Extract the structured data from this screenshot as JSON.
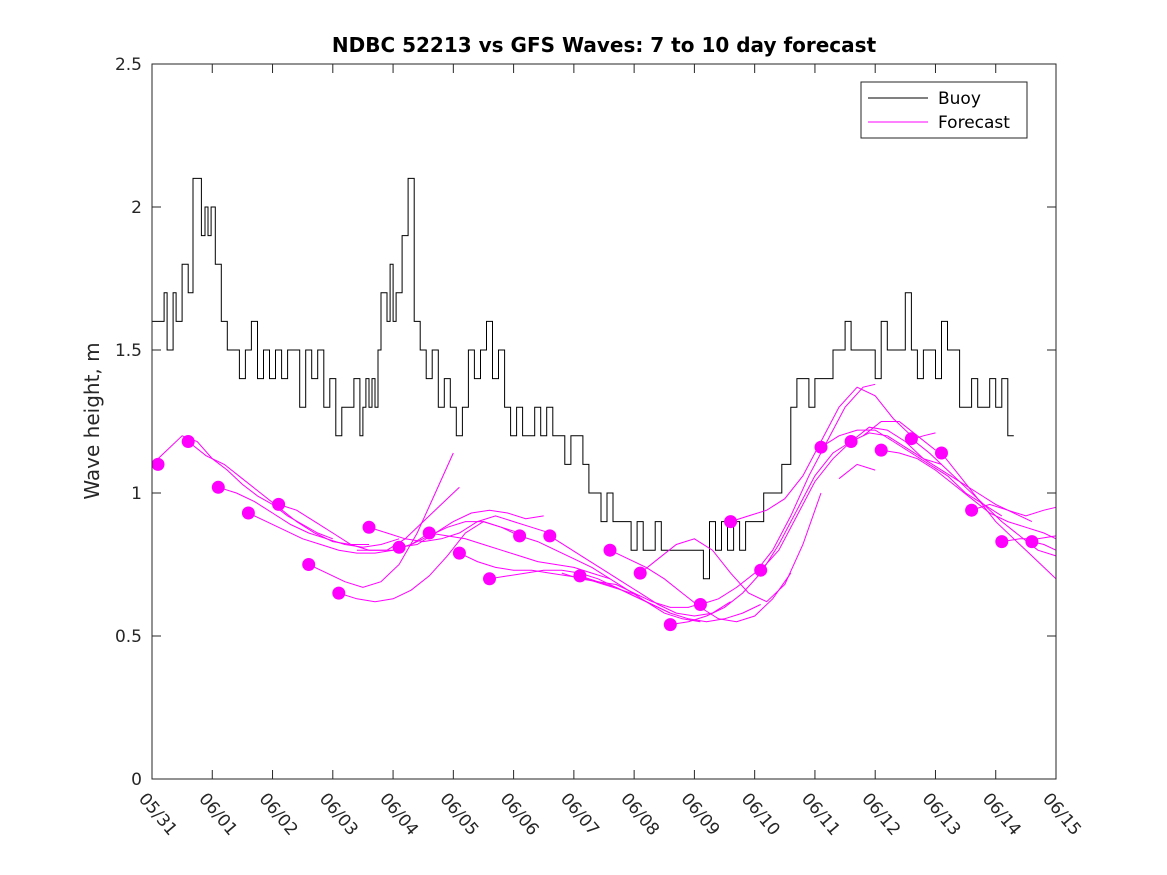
{
  "chart_data": {
    "type": "line",
    "title": "NDBC 52213 vs GFS Waves: 7 to 10 day forecast",
    "xlabel": "",
    "ylabel": "Wave height, m",
    "ylim": [
      0,
      2.5
    ],
    "yticks": [
      0,
      0.5,
      1,
      1.5,
      2,
      2.5
    ],
    "ytick_labels": [
      "0",
      "0.5",
      "1",
      "1.5",
      "2",
      "2.5"
    ],
    "xlim_days": [
      0,
      15
    ],
    "xtick_labels": [
      "05/31",
      "06/01",
      "06/02",
      "06/03",
      "06/04",
      "06/05",
      "06/06",
      "06/07",
      "06/08",
      "06/09",
      "06/10",
      "06/11",
      "06/12",
      "06/13",
      "06/14",
      "06/15"
    ],
    "legend": {
      "placement": "top-right",
      "entries": [
        "Buoy",
        "Forecast"
      ]
    },
    "colors": {
      "buoy": "#000000",
      "forecast": "#ff00ff"
    },
    "buoy": {
      "name": "Buoy",
      "x": [
        0.0,
        0.1,
        0.2,
        0.25,
        0.35,
        0.4,
        0.5,
        0.6,
        0.68,
        0.75,
        0.82,
        0.88,
        0.93,
        0.98,
        1.05,
        1.15,
        1.25,
        1.35,
        1.45,
        1.55,
        1.65,
        1.75,
        1.85,
        1.95,
        2.05,
        2.15,
        2.25,
        2.35,
        2.45,
        2.55,
        2.65,
        2.75,
        2.85,
        2.95,
        3.05,
        3.15,
        3.25,
        3.35,
        3.45,
        3.5,
        3.55,
        3.6,
        3.65,
        3.7,
        3.75,
        3.8,
        3.85,
        3.9,
        3.95,
        4.0,
        4.05,
        4.15,
        4.25,
        4.35,
        4.45,
        4.55,
        4.65,
        4.75,
        4.85,
        4.95,
        5.05,
        5.15,
        5.25,
        5.35,
        5.45,
        5.55,
        5.65,
        5.75,
        5.85,
        5.95,
        6.05,
        6.15,
        6.25,
        6.35,
        6.45,
        6.55,
        6.65,
        6.75,
        6.85,
        6.95,
        7.05,
        7.15,
        7.25,
        7.35,
        7.45,
        7.55,
        7.65,
        7.75,
        7.85,
        7.95,
        8.05,
        8.15,
        8.25,
        8.35,
        8.45,
        8.55,
        8.65,
        8.75,
        8.85,
        8.95,
        9.05,
        9.15,
        9.25,
        9.35,
        9.45,
        9.55,
        9.65,
        9.75,
        9.85,
        9.95,
        10.05,
        10.15,
        10.25,
        10.35,
        10.45,
        10.55,
        10.6,
        10.7,
        10.8,
        10.9,
        11.0,
        11.1,
        11.2,
        11.3,
        11.4,
        11.5,
        11.6,
        11.7,
        11.8,
        11.9,
        12.0,
        12.1,
        12.2,
        12.3,
        12.4,
        12.5,
        12.6,
        12.7,
        12.8,
        12.9,
        13.0,
        13.1,
        13.2,
        13.3,
        13.4,
        13.5,
        13.6,
        13.7,
        13.8,
        13.9,
        14.0,
        14.1,
        14.2,
        14.3
      ],
      "y": [
        1.6,
        1.6,
        1.7,
        1.5,
        1.7,
        1.6,
        1.8,
        1.7,
        2.1,
        2.1,
        1.9,
        2.0,
        1.9,
        2.0,
        1.8,
        1.6,
        1.5,
        1.5,
        1.4,
        1.5,
        1.6,
        1.4,
        1.5,
        1.4,
        1.5,
        1.4,
        1.5,
        1.5,
        1.3,
        1.5,
        1.4,
        1.5,
        1.3,
        1.4,
        1.2,
        1.3,
        1.3,
        1.4,
        1.2,
        1.3,
        1.4,
        1.3,
        1.4,
        1.3,
        1.5,
        1.7,
        1.7,
        1.6,
        1.8,
        1.6,
        1.7,
        1.9,
        2.1,
        1.6,
        1.5,
        1.4,
        1.5,
        1.3,
        1.4,
        1.3,
        1.2,
        1.3,
        1.5,
        1.4,
        1.5,
        1.6,
        1.4,
        1.5,
        1.3,
        1.2,
        1.3,
        1.2,
        1.2,
        1.3,
        1.2,
        1.3,
        1.2,
        1.2,
        1.1,
        1.2,
        1.2,
        1.1,
        1.0,
        1.0,
        0.9,
        1.0,
        0.9,
        0.9,
        0.9,
        0.8,
        0.9,
        0.8,
        0.8,
        0.9,
        0.8,
        0.8,
        0.8,
        0.8,
        0.8,
        0.8,
        0.8,
        0.7,
        0.9,
        0.8,
        0.9,
        0.8,
        0.9,
        0.8,
        0.9,
        0.9,
        0.9,
        1.0,
        1.0,
        1.0,
        1.1,
        1.1,
        1.3,
        1.4,
        1.4,
        1.3,
        1.4,
        1.4,
        1.4,
        1.5,
        1.5,
        1.6,
        1.5,
        1.5,
        1.5,
        1.5,
        1.4,
        1.6,
        1.5,
        1.5,
        1.5,
        1.7,
        1.5,
        1.4,
        1.5,
        1.5,
        1.4,
        1.6,
        1.5,
        1.5,
        1.3,
        1.3,
        1.4,
        1.3,
        1.3,
        1.4,
        1.3,
        1.4,
        1.2,
        1.2
      ]
    },
    "forecast_runs": [
      {
        "x": [
          0.0,
          0.25,
          0.5,
          0.75,
          1.0,
          1.25,
          1.5,
          1.75,
          2.0,
          2.25,
          2.5,
          2.75,
          3.0
        ],
        "y": [
          1.1,
          1.15,
          1.2,
          1.18,
          1.12,
          1.08,
          1.03,
          0.99,
          0.96,
          0.92,
          0.89,
          0.86,
          0.84
        ]
      },
      {
        "x": [
          0.6,
          0.9,
          1.2,
          1.5,
          1.8,
          2.1,
          2.4,
          2.7,
          3.0,
          3.3,
          3.6
        ],
        "y": [
          1.18,
          1.13,
          1.1,
          1.05,
          1.0,
          0.95,
          0.9,
          0.86,
          0.83,
          0.82,
          0.82
        ]
      },
      {
        "x": [
          1.1,
          1.4,
          1.7,
          2.0,
          2.3,
          2.6,
          2.9,
          3.2,
          3.5,
          3.8,
          4.1
        ],
        "y": [
          1.02,
          1.0,
          0.97,
          0.93,
          0.89,
          0.86,
          0.84,
          0.82,
          0.81,
          0.82,
          0.84
        ]
      },
      {
        "x": [
          1.6,
          1.9,
          2.2,
          2.5,
          2.8,
          3.1,
          3.4,
          3.7,
          4.0,
          4.3,
          4.6
        ],
        "y": [
          0.93,
          0.9,
          0.87,
          0.84,
          0.82,
          0.8,
          0.79,
          0.79,
          0.8,
          0.82,
          0.86
        ]
      },
      {
        "x": [
          2.1,
          2.4,
          2.7,
          3.0,
          3.3,
          3.6,
          3.9,
          4.2,
          4.5,
          4.8,
          5.1
        ],
        "y": [
          0.96,
          0.94,
          0.9,
          0.86,
          0.82,
          0.8,
          0.8,
          0.84,
          0.9,
          0.96,
          1.02
        ]
      },
      {
        "x": [
          2.6,
          2.9,
          3.2,
          3.5,
          3.8,
          4.1,
          4.4,
          4.7,
          5.0
        ],
        "y": [
          0.75,
          0.72,
          0.69,
          0.67,
          0.69,
          0.75,
          0.86,
          1.0,
          1.14
        ]
      },
      {
        "x": [
          3.1,
          3.4,
          3.7,
          4.0,
          4.3,
          4.6,
          4.9,
          5.2,
          5.5,
          5.8,
          6.1
        ],
        "y": [
          0.65,
          0.63,
          0.62,
          0.63,
          0.66,
          0.71,
          0.78,
          0.86,
          0.9,
          0.88,
          0.85
        ]
      },
      {
        "x": [
          3.6,
          3.9,
          4.2,
          4.5,
          4.8,
          5.1,
          5.4,
          5.7,
          6.0,
          6.3,
          6.6
        ],
        "y": [
          0.88,
          0.86,
          0.84,
          0.83,
          0.84,
          0.86,
          0.9,
          0.92,
          0.9,
          0.88,
          0.86
        ]
      },
      {
        "x": [
          4.1,
          4.4,
          4.7,
          5.0,
          5.3,
          5.6,
          5.9,
          6.2,
          6.5
        ],
        "y": [
          0.81,
          0.82,
          0.86,
          0.9,
          0.93,
          0.94,
          0.93,
          0.91,
          0.92
        ]
      },
      {
        "x": [
          4.6,
          4.9,
          5.2,
          5.5,
          5.8,
          6.1,
          6.4,
          6.7,
          7.0,
          7.3,
          7.6
        ],
        "y": [
          0.86,
          0.85,
          0.84,
          0.82,
          0.8,
          0.78,
          0.76,
          0.75,
          0.74,
          0.72,
          0.7
        ]
      },
      {
        "x": [
          5.1,
          5.4,
          5.7,
          6.0,
          6.3,
          6.6,
          6.9,
          7.2,
          7.5,
          7.8,
          8.1
        ],
        "y": [
          0.79,
          0.76,
          0.74,
          0.73,
          0.73,
          0.72,
          0.71,
          0.7,
          0.68,
          0.66,
          0.64
        ]
      },
      {
        "x": [
          5.6,
          5.9,
          6.2,
          6.5,
          6.8,
          7.1,
          7.4,
          7.7,
          8.0,
          8.3,
          8.6
        ],
        "y": [
          0.7,
          0.71,
          0.72,
          0.73,
          0.73,
          0.72,
          0.7,
          0.67,
          0.64,
          0.61,
          0.58
        ]
      },
      {
        "x": [
          6.1,
          6.4,
          6.7,
          7.0,
          7.3,
          7.6,
          7.9,
          8.2,
          8.5,
          8.8,
          9.1
        ],
        "y": [
          0.85,
          0.83,
          0.8,
          0.77,
          0.74,
          0.7,
          0.66,
          0.62,
          0.58,
          0.56,
          0.55
        ]
      },
      {
        "x": [
          6.6,
          6.9,
          7.2,
          7.5,
          7.8,
          8.1,
          8.4,
          8.7,
          9.0,
          9.3,
          9.6
        ],
        "y": [
          0.85,
          0.81,
          0.77,
          0.73,
          0.69,
          0.65,
          0.61,
          0.58,
          0.57,
          0.58,
          0.62
        ]
      },
      {
        "x": [
          7.1,
          7.4,
          7.7,
          8.0,
          8.3,
          8.6,
          8.9,
          9.2,
          9.5,
          9.8,
          10.1
        ],
        "y": [
          0.71,
          0.69,
          0.67,
          0.64,
          0.61,
          0.58,
          0.56,
          0.55,
          0.56,
          0.58,
          0.61
        ]
      },
      {
        "x": [
          7.6,
          7.9,
          8.2,
          8.5,
          8.8,
          9.1,
          9.4,
          9.7,
          10.0,
          10.3,
          10.6
        ],
        "y": [
          0.8,
          0.77,
          0.74,
          0.7,
          0.65,
          0.6,
          0.56,
          0.55,
          0.57,
          0.63,
          0.72
        ]
      },
      {
        "x": [
          8.1,
          8.4,
          8.7,
          9.0,
          9.3,
          9.6,
          9.9,
          10.2,
          10.5,
          10.8,
          11.1
        ],
        "y": [
          0.72,
          0.77,
          0.82,
          0.84,
          0.8,
          0.72,
          0.65,
          0.62,
          0.68,
          0.82,
          1.0
        ]
      },
      {
        "x": [
          8.6,
          8.9,
          9.2,
          9.5,
          9.8,
          10.1,
          10.4,
          10.7,
          11.0,
          11.3,
          11.6
        ],
        "y": [
          0.54,
          0.55,
          0.57,
          0.6,
          0.65,
          0.72,
          0.82,
          0.94,
          1.06,
          1.14,
          1.18
        ]
      },
      {
        "x": [
          9.1,
          9.4,
          9.7,
          10.0,
          10.3,
          10.6,
          10.9,
          11.2,
          11.5,
          11.8,
          12.0
        ],
        "y": [
          0.61,
          0.63,
          0.67,
          0.72,
          0.8,
          0.92,
          1.06,
          1.18,
          1.3,
          1.37,
          1.38
        ]
      },
      {
        "x": [
          9.6,
          9.9,
          10.2,
          10.5,
          10.8,
          11.1,
          11.4,
          11.7,
          12.0,
          12.3,
          12.6
        ],
        "y": [
          0.9,
          0.92,
          0.94,
          0.98,
          1.06,
          1.18,
          1.3,
          1.37,
          1.34,
          1.26,
          1.2
        ]
      },
      {
        "x": [
          10.1,
          10.4,
          10.7,
          11.0,
          11.3,
          11.6,
          11.9,
          12.2,
          12.5,
          12.8,
          13.1
        ],
        "y": [
          0.73,
          0.8,
          0.92,
          1.04,
          1.12,
          1.18,
          1.21,
          1.2,
          1.16,
          1.12,
          1.1
        ]
      },
      {
        "x": [
          11.1,
          11.4,
          11.7,
          12.0,
          12.3,
          12.6,
          12.9,
          13.2,
          13.5,
          13.8,
          14.1
        ],
        "y": [
          1.16,
          1.2,
          1.22,
          1.22,
          1.18,
          1.14,
          1.1,
          1.06,
          1.0,
          0.96,
          0.92
        ]
      },
      {
        "x": [
          11.6,
          11.9,
          12.2,
          12.5,
          12.8,
          13.1,
          13.4,
          13.7,
          14.0,
          14.3,
          14.6
        ],
        "y": [
          1.18,
          1.23,
          1.22,
          1.18,
          1.12,
          1.08,
          1.04,
          1.0,
          0.96,
          0.93,
          0.9
        ]
      },
      {
        "x": [
          12.1,
          12.4,
          12.7,
          13.0,
          13.3,
          13.6,
          13.9,
          14.2,
          14.5,
          14.8,
          15.0
        ],
        "y": [
          1.15,
          1.14,
          1.12,
          1.08,
          1.03,
          0.98,
          0.93,
          0.9,
          0.88,
          0.86,
          0.84
        ]
      },
      {
        "x": [
          12.6,
          12.9,
          13.2,
          13.5,
          13.8,
          14.1,
          14.4,
          14.7,
          15.0
        ],
        "y": [
          1.19,
          1.14,
          1.08,
          1.02,
          0.96,
          0.9,
          0.85,
          0.8,
          0.78
        ]
      },
      {
        "x": [
          13.1,
          13.4,
          13.7,
          14.0,
          14.3,
          14.6,
          14.9,
          15.0
        ],
        "y": [
          1.14,
          1.06,
          0.98,
          0.9,
          0.84,
          0.78,
          0.72,
          0.7
        ]
      },
      {
        "x": [
          13.6,
          13.9,
          14.2,
          14.5,
          14.8,
          15.0
        ],
        "y": [
          0.94,
          0.96,
          0.94,
          0.92,
          0.94,
          0.95
        ]
      },
      {
        "x": [
          14.1,
          14.4,
          14.7,
          15.0
        ],
        "y": [
          0.83,
          0.84,
          0.84,
          0.85
        ]
      },
      {
        "x": [
          14.6,
          14.8,
          15.0
        ],
        "y": [
          0.83,
          0.82,
          0.8
        ]
      },
      {
        "x": [
          3.4,
          3.7,
          4.0,
          4.3,
          4.6,
          4.9,
          5.2,
          5.5,
          5.8,
          6.1
        ],
        "y": [
          0.8,
          0.8,
          0.8,
          0.82,
          0.85,
          0.88,
          0.9,
          0.9,
          0.88,
          0.86
        ]
      },
      {
        "x": [
          6.8,
          7.1,
          7.4,
          7.7,
          8.0,
          8.3,
          8.6,
          8.9,
          9.2
        ],
        "y": [
          0.72,
          0.7,
          0.69,
          0.68,
          0.65,
          0.62,
          0.6,
          0.6,
          0.62
        ]
      },
      {
        "x": [
          11.8,
          12.1,
          12.4,
          12.7,
          13.0
        ],
        "y": [
          1.2,
          1.25,
          1.25,
          1.2,
          1.15
        ]
      },
      {
        "x": [
          11.4,
          11.7,
          12.0
        ],
        "y": [
          1.05,
          1.1,
          1.08
        ]
      },
      {
        "x": [
          12.5,
          12.8,
          13.0
        ],
        "y": [
          1.18,
          1.2,
          1.21
        ]
      }
    ],
    "forecast_markers": {
      "x": [
        0.1,
        0.6,
        1.1,
        1.6,
        2.1,
        2.6,
        3.1,
        3.6,
        4.1,
        4.6,
        5.1,
        5.6,
        6.1,
        6.6,
        7.1,
        7.6,
        8.1,
        8.6,
        9.1,
        9.6,
        10.1,
        11.1,
        11.6,
        12.1,
        12.6,
        13.1,
        13.6,
        14.1,
        14.6
      ],
      "y": [
        1.1,
        1.18,
        1.02,
        0.93,
        0.96,
        0.75,
        0.65,
        0.88,
        0.81,
        0.86,
        0.79,
        0.7,
        0.85,
        0.85,
        0.71,
        0.8,
        0.72,
        0.54,
        0.61,
        0.9,
        0.73,
        1.16,
        1.18,
        1.15,
        1.19,
        1.14,
        0.94,
        0.83,
        0.83
      ]
    }
  }
}
